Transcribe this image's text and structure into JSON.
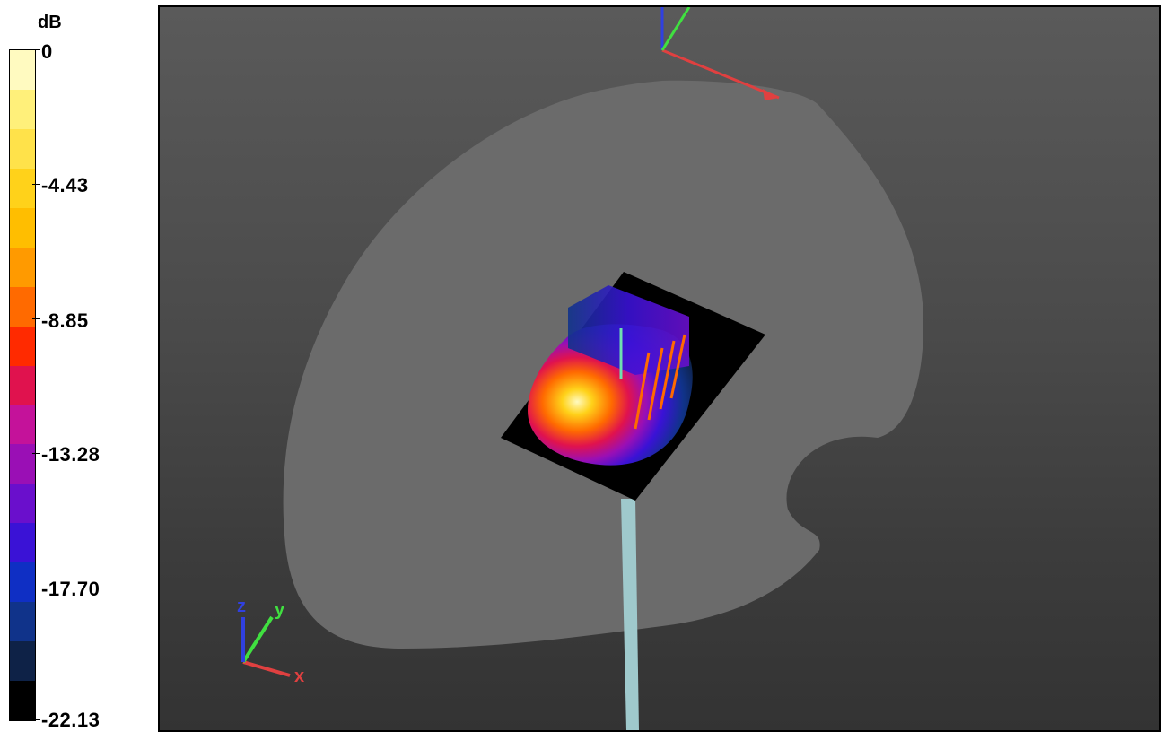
{
  "legend": {
    "unit": "dB",
    "ticks": [
      "0",
      "-4.43",
      "-8.85",
      "-13.28",
      "-17.70",
      "-22.13"
    ],
    "colors": [
      "#000000",
      "#0e2247",
      "#10338a",
      "#0f2fc4",
      "#3a12d6",
      "#6a0fcc",
      "#9a0fb5",
      "#c4129a",
      "#e0124e",
      "#ff2a00",
      "#ff6a00",
      "#ff9a00",
      "#ffbe00",
      "#ffd21a",
      "#ffe24a",
      "#fff07a",
      "#fffac0"
    ]
  },
  "viewport": {
    "axes_triad_labels": {
      "x": "x",
      "y": "y",
      "z": "z"
    },
    "colors": {
      "background_top": "#5a5a5a",
      "head_phantom": "#6b6b6b",
      "ground_plane": "#000000",
      "feed_line": "#9fc9cc",
      "x_axis": "#e04040",
      "y_axis": "#40e040",
      "z_axis": "#3040e0"
    }
  }
}
